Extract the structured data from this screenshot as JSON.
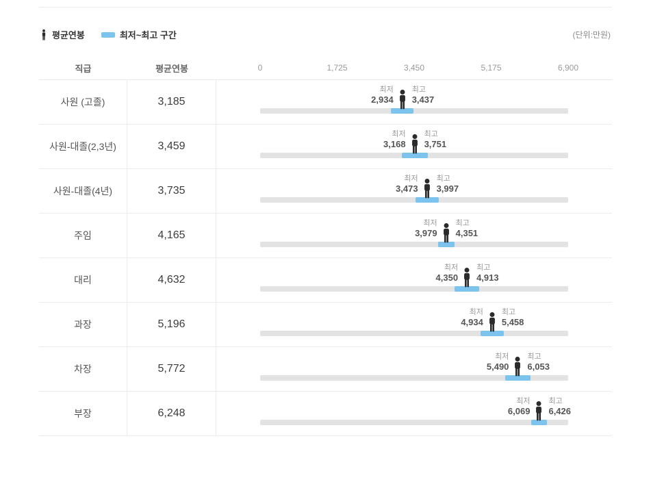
{
  "legend": {
    "avg_label": "평균연봉",
    "range_label": "최저~최고 구간",
    "unit_label": "(단위:만원)"
  },
  "header": {
    "position_col": "직급",
    "avg_col": "평균연봉"
  },
  "labels": {
    "min": "최저",
    "max": "최고"
  },
  "colors": {
    "range": "#7cc3ee",
    "track": "#e3e3e3",
    "person": "#2b2b2b"
  },
  "rows": [
    {
      "position": "사원 (고졸)",
      "avg": "3,185",
      "min": "2,934",
      "max": "3,437"
    },
    {
      "position": "사원-대졸(2,3년)",
      "avg": "3,459",
      "min": "3,168",
      "max": "3,751"
    },
    {
      "position": "사원-대졸(4년)",
      "avg": "3,735",
      "min": "3,473",
      "max": "3,997"
    },
    {
      "position": "주임",
      "avg": "4,165",
      "min": "3,979",
      "max": "4,351"
    },
    {
      "position": "대리",
      "avg": "4,632",
      "min": "4,350",
      "max": "4,913"
    },
    {
      "position": "과장",
      "avg": "5,196",
      "min": "4,934",
      "max": "5,458"
    },
    {
      "position": "차장",
      "avg": "5,772",
      "min": "5,490",
      "max": "6,053"
    },
    {
      "position": "부장",
      "avg": "6,248",
      "min": "6,069",
      "max": "6,426"
    }
  ],
  "chart_data": {
    "type": "bar",
    "categories": [
      "사원 (고졸)",
      "사원-대졸(2,3년)",
      "사원-대졸(4년)",
      "주임",
      "대리",
      "과장",
      "차장",
      "부장"
    ],
    "series": [
      {
        "name": "평균연봉",
        "values": [
          3185,
          3459,
          3735,
          4165,
          4632,
          5196,
          5772,
          6248
        ]
      },
      {
        "name": "최저",
        "values": [
          2934,
          3168,
          3473,
          3979,
          4350,
          4934,
          5490,
          6069
        ]
      },
      {
        "name": "최고",
        "values": [
          3437,
          3751,
          3997,
          4351,
          4913,
          5458,
          6053,
          6426
        ]
      }
    ],
    "xlim": [
      0,
      6900
    ],
    "x_ticks": [
      0,
      1725,
      3450,
      5175,
      6900
    ],
    "ticks": [
      "0",
      "1,725",
      "3,450",
      "5,175",
      "6,900"
    ],
    "unit": "만원",
    "grid": false,
    "legend_position": "top-left"
  }
}
